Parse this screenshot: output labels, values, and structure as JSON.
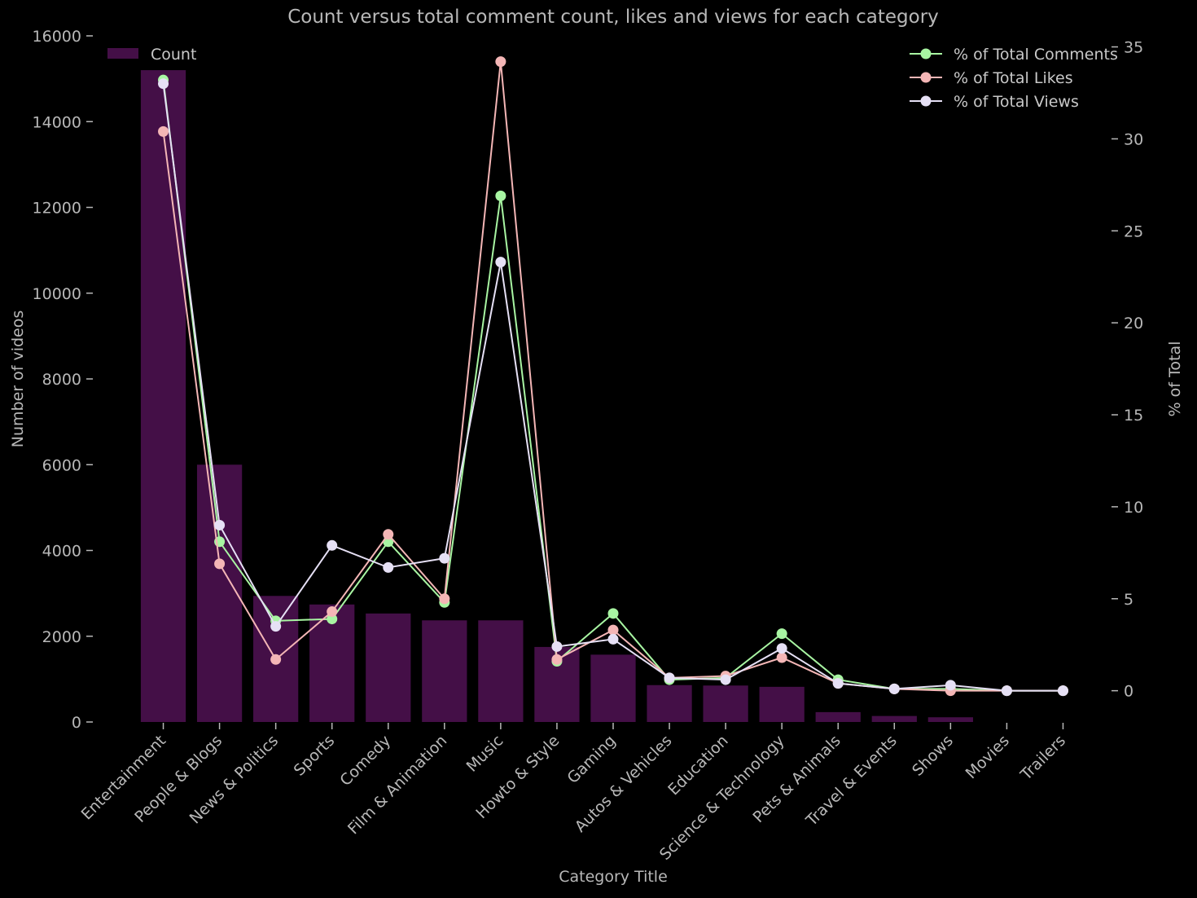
{
  "chart_data": {
    "type": "bar",
    "title": "Count versus total comment count, likes and views for each category",
    "xlabel": "Category Title",
    "ylabel": "Number of videos",
    "y2label": "% of Total",
    "ylim": [
      0,
      16000
    ],
    "y2lim": [
      -1.7,
      35.6
    ],
    "yticks": [
      0,
      2000,
      4000,
      6000,
      8000,
      10000,
      12000,
      14000,
      16000
    ],
    "y2ticks": [
      0,
      5,
      10,
      15,
      20,
      25,
      30,
      35
    ],
    "grid": false,
    "categories": [
      "Entertainment",
      "People & Blogs",
      "News & Politics",
      "Sports",
      "Comedy",
      "Film & Animation",
      "Music",
      "Howto & Style",
      "Gaming",
      "Autos & Vehicles",
      "Education",
      "Science & Technology",
      "Pets & Animals",
      "Travel & Events",
      "Shows",
      "Movies",
      "Trailers"
    ],
    "bar_series": {
      "name": "Count",
      "color": "#440f47",
      "values": [
        15200,
        6000,
        2940,
        2740,
        2530,
        2370,
        2370,
        1750,
        1570,
        860,
        850,
        820,
        230,
        140,
        110,
        0,
        0
      ]
    },
    "line_series": [
      {
        "name": "% of Total Comments",
        "color": "#a8f5a2",
        "values": [
          33.2,
          8.1,
          3.8,
          3.9,
          8.1,
          4.8,
          26.9,
          1.6,
          4.2,
          0.6,
          0.7,
          3.1,
          0.6,
          0.1,
          0.1,
          0.0,
          0.0
        ]
      },
      {
        "name": "% of Total Likes",
        "color": "#f4b6b6",
        "values": [
          30.4,
          6.9,
          1.7,
          4.3,
          8.5,
          5.0,
          34.2,
          1.7,
          3.3,
          0.7,
          0.8,
          1.8,
          0.4,
          0.1,
          0.0,
          0.0,
          0.0
        ]
      },
      {
        "name": "% of Total Views",
        "color": "#e6e0f5",
        "values": [
          33.0,
          9.0,
          3.5,
          7.9,
          6.7,
          7.2,
          23.3,
          2.4,
          2.8,
          0.7,
          0.6,
          2.3,
          0.4,
          0.1,
          0.3,
          0.0,
          0.0
        ]
      }
    ],
    "legend_placement": {
      "bars": "top-left",
      "lines": "top-right"
    }
  }
}
